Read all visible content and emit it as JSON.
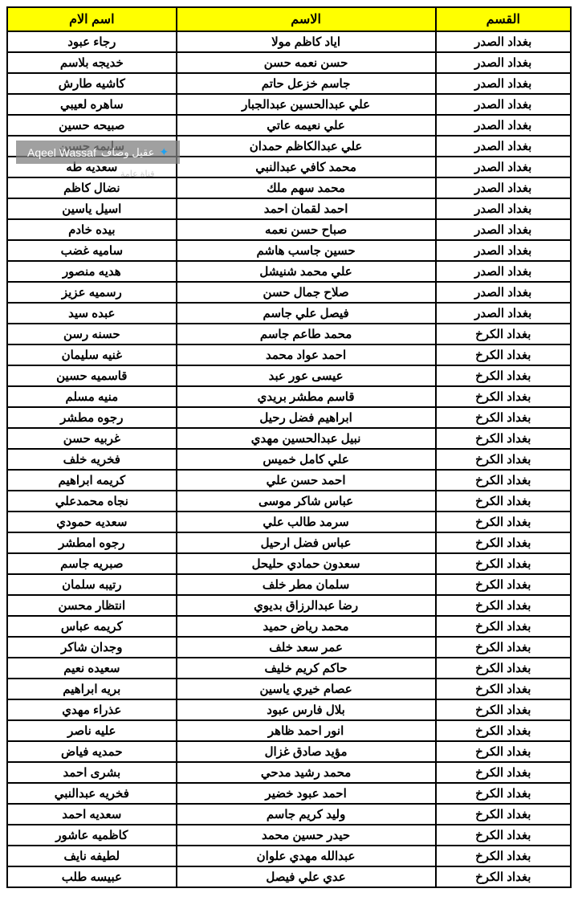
{
  "table": {
    "header_bg": "#ffff00",
    "border_color": "#000000",
    "text_color": "#000000",
    "columns": [
      "القسم",
      "الاسم",
      "اسم الام"
    ],
    "rows": [
      [
        "بغداد الصدر",
        "اياد كاظم مولا",
        "رجاء عبود"
      ],
      [
        "بغداد الصدر",
        "حسن نعمه حسن",
        "خديجه بلاسم"
      ],
      [
        "بغداد الصدر",
        "جاسم خزعل حاتم",
        "كاشيه طارش"
      ],
      [
        "بغداد الصدر",
        "علي عبدالحسين عبدالجبار",
        "ساهره لعيبي"
      ],
      [
        "بغداد الصدر",
        "علي نعيمه عاتي",
        "صبيحه حسين"
      ],
      [
        "بغداد الصدر",
        "علي عبدالكاظم حمدان",
        "سليمه حسين"
      ],
      [
        "بغداد الصدر",
        "محمد كافي عبدالنبي",
        "سعديه طه"
      ],
      [
        "بغداد الصدر",
        "محمد سهم ملك",
        "نضال كاظم"
      ],
      [
        "بغداد الصدر",
        "احمد لقمان احمد",
        "اسيل ياسين"
      ],
      [
        "بغداد الصدر",
        "صباح حسن نعمه",
        "بيده خادم"
      ],
      [
        "بغداد الصدر",
        "حسين جاسب هاشم",
        "ساميه غضب"
      ],
      [
        "بغداد الصدر",
        "علي محمد شنيشل",
        "هديه منصور"
      ],
      [
        "بغداد الصدر",
        "صلاح جمال حسن",
        "رسميه عزيز"
      ],
      [
        "بغداد الصدر",
        "فيصل علي جاسم",
        "عبده سيد"
      ],
      [
        "بغداد الكرخ",
        "محمد طاعم جاسم",
        "حسنه رسن"
      ],
      [
        "بغداد الكرخ",
        "احمد عواد محمد",
        "غنيه سليمان"
      ],
      [
        "بغداد الكرخ",
        "عيسى عور عبد",
        "قاسميه حسين"
      ],
      [
        "بغداد الكرخ",
        "قاسم مطشر بريدي",
        "منيه مسلم"
      ],
      [
        "بغداد الكرخ",
        "ابراهيم فضل رحيل",
        "رجوه مطشر"
      ],
      [
        "بغداد الكرخ",
        "نبيل عبدالحسين مهدي",
        "غربيه حسن"
      ],
      [
        "بغداد الكرخ",
        "علي كامل خميس",
        "فخريه خلف"
      ],
      [
        "بغداد الكرخ",
        "احمد حسن علي",
        "كريمه ابراهيم"
      ],
      [
        "بغداد الكرخ",
        "عباس شاكر موسى",
        "نجاه محمدعلي"
      ],
      [
        "بغداد الكرخ",
        "سرمد طالب علي",
        "سعديه حمودي"
      ],
      [
        "بغداد الكرخ",
        "عباس فضل ارحيل",
        "رجوه امطشر"
      ],
      [
        "بغداد الكرخ",
        "سعدون حمادي حليحل",
        "صبريه جاسم"
      ],
      [
        "بغداد الكرخ",
        "سلمان مطر خلف",
        "رتيبه سلمان"
      ],
      [
        "بغداد الكرخ",
        "رضا عبدالرزاق بديوي",
        "انتظار محسن"
      ],
      [
        "بغداد الكرخ",
        "محمد رياض حميد",
        "كريمه عباس"
      ],
      [
        "بغداد الكرخ",
        "عمر سعد خلف",
        "وجدان شاكر"
      ],
      [
        "بغداد الكرخ",
        "حاكم كريم خليف",
        "سعيده نعيم"
      ],
      [
        "بغداد الكرخ",
        "عصام خيري ياسين",
        "بريه ابراهيم"
      ],
      [
        "بغداد الكرخ",
        "بلال فارس عبود",
        "عذراء مهدي"
      ],
      [
        "بغداد الكرخ",
        "انور احمد ظاهر",
        "عليه ناصر"
      ],
      [
        "بغداد الكرخ",
        "مؤيد صادق غزال",
        "حمديه فياض"
      ],
      [
        "بغداد الكرخ",
        "محمد رشيد مدحي",
        "بشرى احمد"
      ],
      [
        "بغداد الكرخ",
        "احمد عبود خضير",
        "فخريه عبدالنبي"
      ],
      [
        "بغداد الكرخ",
        "وليد كريم جاسم",
        "سعديه احمد"
      ],
      [
        "بغداد الكرخ",
        "حيدر حسين محمد",
        "كاظميه عاشور"
      ],
      [
        "بغداد الكرخ",
        "عبدالله مهدي علوان",
        "لطيفه نايف"
      ],
      [
        "بغداد الكرخ",
        "عدي علي فيصل",
        "عبيسه طلب"
      ]
    ]
  },
  "watermark": {
    "text_en": "Aqeel Wassaf",
    "text_ar": "عقيل وصاف",
    "sub_text": "قناة عامة",
    "bg_color": "rgba(128,128,128,0.75)",
    "text_color": "#ffffff"
  }
}
